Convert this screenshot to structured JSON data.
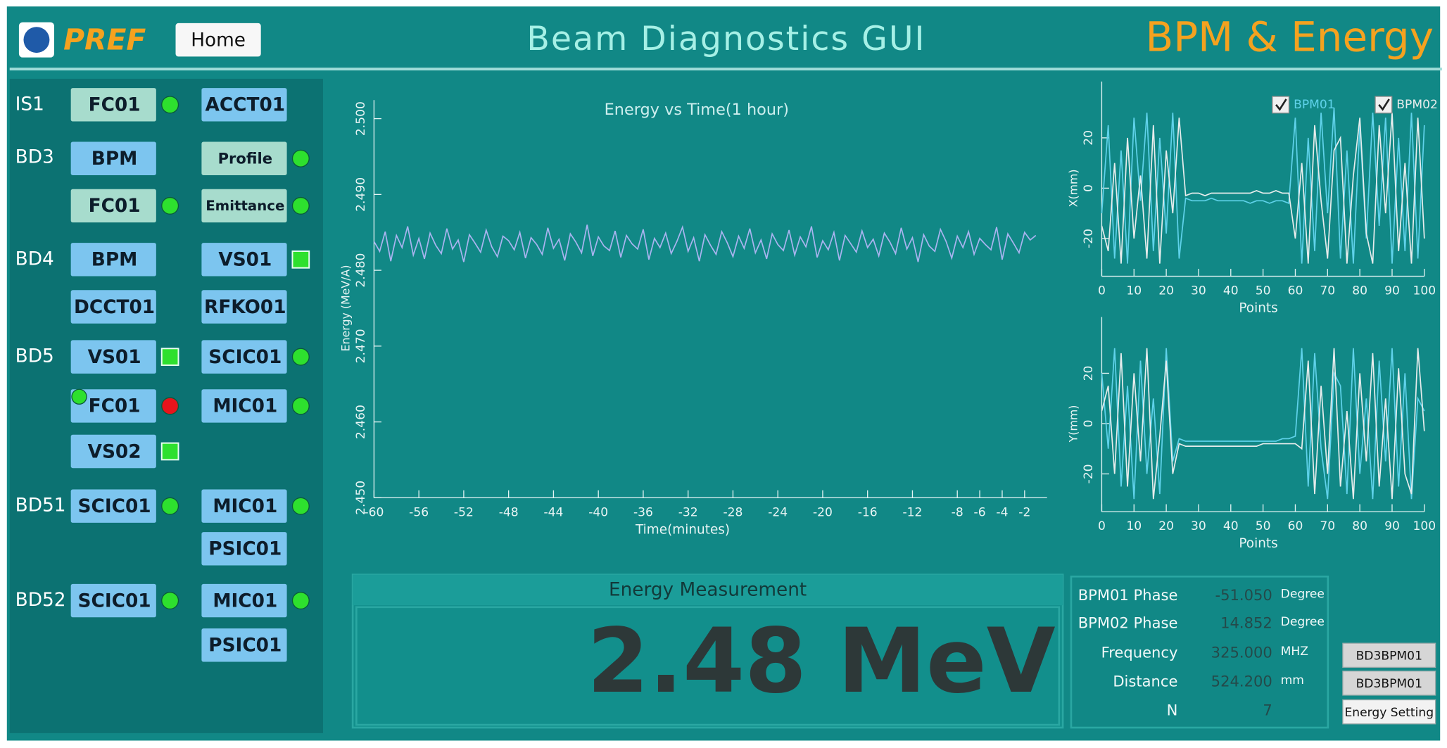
{
  "header": {
    "logo_text": "PREF",
    "home": "Home",
    "title": "Beam Diagnostics GUI",
    "page": "BPM & Energy"
  },
  "sidebar": [
    {
      "label": "IS1",
      "buttons": [
        "FC01",
        "ACCT01"
      ]
    },
    {
      "label": "BD3",
      "buttons": [
        "BPM",
        "Profile",
        "FC01",
        "Emittance"
      ]
    },
    {
      "label": "BD4",
      "buttons": [
        "BPM",
        "VS01",
        "DCCT01",
        "RFKO01"
      ]
    },
    {
      "label": "BD5",
      "buttons": [
        "VS01",
        "SCIC01",
        "FC01",
        "MIC01",
        "VS02"
      ]
    },
    {
      "label": "BD51",
      "buttons": [
        "SCIC01",
        "MIC01",
        "PSIC01"
      ]
    },
    {
      "label": "BD52",
      "buttons": [
        "SCIC01",
        "MIC01",
        "PSIC01"
      ]
    }
  ],
  "chart_data": [
    {
      "type": "line",
      "title": "Energy vs Time(1 hour)",
      "x_label": "Time(minutes)",
      "y_label": "Energy (MeV/A)",
      "xlim": [
        -60,
        0
      ],
      "ylim": [
        2.45,
        2.5
      ],
      "xticks": [
        -60,
        -56,
        -52,
        -48,
        -44,
        -40,
        -36,
        -32,
        -28,
        -24,
        -20,
        -16,
        -12,
        -8,
        -6,
        -4,
        -2
      ],
      "yticks": [
        {
          "value": 2.45,
          "label": "2.450"
        },
        {
          "value": 2.46,
          "label": "2.460"
        },
        {
          "value": 2.47,
          "label": "2.470"
        },
        {
          "value": 2.48,
          "label": "2.480"
        },
        {
          "value": 2.49,
          "label": "2.490"
        },
        {
          "value": 2.5,
          "label": "2.500"
        }
      ],
      "x": [
        -60,
        -59.5,
        -59,
        -58.5,
        -58,
        -57.5,
        -57,
        -56.5,
        -56,
        -55.5,
        -55,
        -54.5,
        -54,
        -53.5,
        -53,
        -52.5,
        -52,
        -51.5,
        -51,
        -50.5,
        -50,
        -49.5,
        -49,
        -48.5,
        -48,
        -47.5,
        -47,
        -46.5,
        -46,
        -45.5,
        -45,
        -44.5,
        -44,
        -43.5,
        -43,
        -42.5,
        -42,
        -41.5,
        -41,
        -40.5,
        -40,
        -39.5,
        -39,
        -38.5,
        -38,
        -37.5,
        -37,
        -36.5,
        -36,
        -35.5,
        -35,
        -34.5,
        -34,
        -33.5,
        -33,
        -32.5,
        -32,
        -31.5,
        -31,
        -30.5,
        -30,
        -29.5,
        -29,
        -28.5,
        -28,
        -27.5,
        -27,
        -26.5,
        -26,
        -25.5,
        -25,
        -24.5,
        -24,
        -23.5,
        -23,
        -22.5,
        -22,
        -21.5,
        -21,
        -20.5,
        -20,
        -19.5,
        -19,
        -18.5,
        -18,
        -17.5,
        -17,
        -16.5,
        -16,
        -15.5,
        -15,
        -14.5,
        -14,
        -13.5,
        -13,
        -12.5,
        -12,
        -11.5,
        -11,
        -10.5,
        -10,
        -9.5,
        -9,
        -8.5,
        -8,
        -7.5,
        -7,
        -6.5,
        -6,
        -5.5,
        -5,
        -4.5,
        -4,
        -3.5,
        -3,
        -2.5,
        -2,
        -1.5,
        -1
      ],
      "series": [
        {
          "name": "Energy",
          "color": "#a9b4f0",
          "values": [
            2.4838,
            2.4825,
            2.4851,
            2.4812,
            2.4846,
            2.483,
            2.4858,
            2.482,
            2.4842,
            2.4815,
            2.4849,
            2.4833,
            2.4822,
            2.4855,
            2.4828,
            2.484,
            2.4811,
            2.4847,
            2.4836,
            2.4824,
            2.4853,
            2.4831,
            2.4818,
            2.4845,
            2.4839,
            2.4827,
            2.485,
            2.4816,
            2.4843,
            2.4834,
            2.4821,
            2.4856,
            2.4829,
            2.4841,
            2.4813,
            2.4848,
            2.4837,
            2.4823,
            2.486,
            2.4819,
            2.4844,
            2.4832,
            2.4826,
            2.4852,
            2.4817,
            2.4846,
            2.4835,
            2.4828,
            2.4854,
            2.4814,
            2.4842,
            2.483,
            2.4849,
            2.4822,
            2.4838,
            2.4857,
            2.4825,
            2.4843,
            2.4812,
            2.4847,
            2.4833,
            2.4821,
            2.4851,
            2.4836,
            2.4818,
            2.4845,
            2.4829,
            2.4855,
            2.4823,
            2.484,
            2.4815,
            2.4848,
            2.4834,
            2.4826,
            2.4853,
            2.482,
            2.4844,
            2.4831,
            2.4858,
            2.4817,
            2.4839,
            2.4827,
            2.485,
            2.4813,
            2.4846,
            2.4835,
            2.4824,
            2.4852,
            2.483,
            2.4841,
            2.4819,
            2.4849,
            2.4837,
            2.4822,
            2.4856,
            2.4828,
            2.4843,
            2.4811,
            2.4847,
            2.4832,
            2.4825,
            2.4854,
            2.4838,
            2.4816,
            2.4845,
            2.483,
            2.4851,
            2.4821,
            2.4842,
            2.4834,
            2.4827,
            2.4857,
            2.4814,
            2.4848,
            2.4836,
            2.4823,
            2.485,
            2.484,
            2.4846
          ]
        }
      ]
    },
    {
      "type": "line",
      "x_label": "Points",
      "y_label": "X(mm)",
      "legend": "top-right",
      "xlim": [
        0,
        100
      ],
      "ylim": [
        -35,
        35
      ],
      "xticks": [
        0,
        10,
        20,
        30,
        40,
        50,
        60,
        70,
        80,
        90,
        100
      ],
      "yticks": [
        -20,
        0,
        20
      ],
      "x": [
        0,
        2,
        4,
        6,
        8,
        10,
        12,
        14,
        16,
        18,
        20,
        22,
        24,
        26,
        28,
        30,
        32,
        34,
        36,
        38,
        40,
        42,
        44,
        46,
        48,
        50,
        52,
        54,
        56,
        58,
        60,
        62,
        64,
        66,
        68,
        70,
        72,
        74,
        76,
        78,
        80,
        82,
        84,
        86,
        88,
        90,
        92,
        94,
        96,
        98,
        100
      ],
      "series": [
        {
          "name": "BPM01",
          "color": "#5fd2ea",
          "values": [
            -10,
            25,
            -28,
            15,
            -30,
            28,
            -5,
            30,
            -25,
            20,
            -18,
            30,
            -28,
            -4,
            -5,
            -5,
            -5,
            -4,
            -5,
            -5,
            -5,
            -5,
            -5,
            -6,
            -5,
            -5,
            -6,
            -5,
            -5,
            -6,
            28,
            -30,
            20,
            -25,
            30,
            -10,
            32,
            -28,
            15,
            -30,
            25,
            -20,
            30,
            -15,
            28,
            -30,
            20,
            -25,
            30,
            -28,
            25
          ]
        },
        {
          "name": "BPM02",
          "color": "#e6ecec",
          "values": [
            -15,
            -25,
            10,
            -30,
            20,
            -20,
            5,
            -28,
            25,
            -30,
            15,
            -10,
            28,
            -3,
            -2,
            -2,
            -3,
            -2,
            -2,
            -2,
            -2,
            -2,
            -2,
            -2,
            -1,
            -2,
            -2,
            -1,
            -2,
            -2,
            -20,
            10,
            -30,
            25,
            -5,
            -28,
            15,
            20,
            -30,
            5,
            28,
            -18,
            -30,
            25,
            -10,
            30,
            -25,
            10,
            -30,
            28,
            -20
          ]
        }
      ]
    },
    {
      "type": "line",
      "x_label": "Points",
      "y_label": "Y(mm)",
      "xlim": [
        0,
        100
      ],
      "ylim": [
        -35,
        35
      ],
      "xticks": [
        0,
        10,
        20,
        30,
        40,
        50,
        60,
        70,
        80,
        90,
        100
      ],
      "yticks": [
        -20,
        0,
        20
      ],
      "x": [
        0,
        2,
        4,
        6,
        8,
        10,
        12,
        14,
        16,
        18,
        20,
        22,
        24,
        26,
        28,
        30,
        32,
        34,
        36,
        38,
        40,
        42,
        44,
        46,
        48,
        50,
        52,
        54,
        56,
        58,
        60,
        62,
        64,
        66,
        68,
        70,
        72,
        74,
        76,
        78,
        80,
        82,
        84,
        86,
        88,
        90,
        92,
        94,
        96,
        98,
        100
      ],
      "series": [
        {
          "name": "BPM01",
          "color": "#5fd2ea",
          "values": [
            20,
            -10,
            30,
            -25,
            15,
            -30,
            25,
            -20,
            10,
            -28,
            30,
            -15,
            -6,
            -7,
            -7,
            -7,
            -7,
            -7,
            -7,
            -7,
            -7,
            -7,
            -7,
            -7,
            -7,
            -7,
            -7,
            -7,
            -6,
            -6,
            -5,
            30,
            -25,
            28,
            -10,
            -30,
            20,
            15,
            -28,
            30,
            -20,
            10,
            -30,
            25,
            -15,
            30,
            -25,
            20,
            -30,
            10,
            5
          ]
        },
        {
          "name": "BPM02",
          "color": "#e6ecec",
          "values": [
            5,
            15,
            -20,
            28,
            -25,
            20,
            -15,
            30,
            -30,
            -5,
            25,
            -20,
            -8,
            -9,
            -9,
            -9,
            -9,
            -9,
            -9,
            -9,
            -9,
            -9,
            -9,
            -9,
            -9,
            -8,
            -8,
            -8,
            -8,
            -8,
            -8,
            -10,
            25,
            -28,
            15,
            -20,
            30,
            -25,
            5,
            -30,
            20,
            -15,
            28,
            -25,
            10,
            -30,
            22,
            -20,
            -28,
            30,
            -3
          ]
        }
      ]
    }
  ],
  "energy": {
    "title": "Energy Measurement",
    "display": "2.48 MeV"
  },
  "info": [
    [
      "BPM01 Phase",
      "-51.050",
      "Degree"
    ],
    [
      "BPM02 Phase",
      "14.852",
      "Degree"
    ],
    [
      "Frequency",
      "325.000",
      "MHZ"
    ],
    [
      "Distance",
      "524.200",
      "mm"
    ],
    [
      "N",
      "7"
    ]
  ],
  "buttons": [
    "BD3BPM01",
    "BD3BPM01",
    "Energy Setting"
  ]
}
